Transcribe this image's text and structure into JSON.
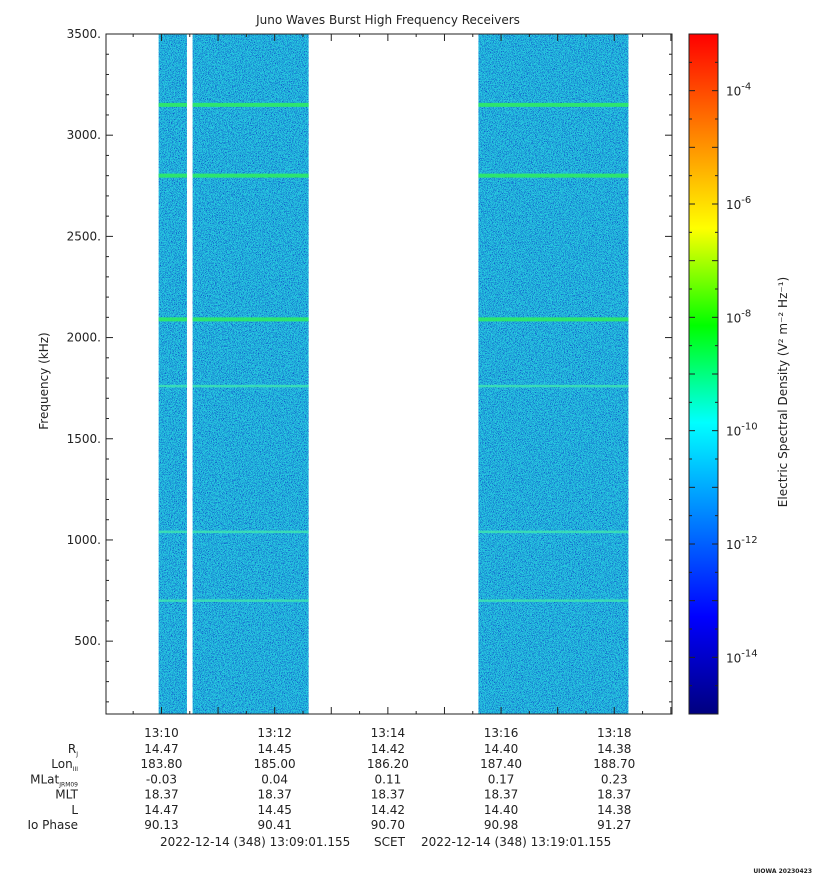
{
  "chart_data": {
    "type": "heatmap",
    "title": "Juno Waves Burst High Frequency Receivers",
    "ylabel": "Frequency (kHz)",
    "y_ticks": [
      "3500.",
      "3000.",
      "2500.",
      "2000.",
      "1500.",
      "1000.",
      "500."
    ],
    "y_tick_values": [
      3500,
      3000,
      2500,
      2000,
      1500,
      1000,
      500
    ],
    "ylim": [
      140,
      3500
    ],
    "x_ticks": [
      "13:10",
      "13:12",
      "13:14",
      "13:16",
      "13:18"
    ],
    "x_tick_minutes": [
      10,
      12,
      14,
      16,
      18
    ],
    "xlim_minutes": [
      9.02,
      19.02
    ],
    "data_segments_minutes": [
      [
        9.95,
        10.45
      ],
      [
        10.55,
        12.6
      ],
      [
        15.6,
        18.25
      ]
    ],
    "emission_lines_khz": [
      3150,
      2800,
      2090,
      1760,
      1040,
      700
    ],
    "colorbar": {
      "label": "Electric Spectral Density (V² m⁻² Hz⁻¹)",
      "ticks": [
        "10",
        "10",
        "10",
        "10",
        "10",
        "10"
      ],
      "tick_exponents": [
        "-4",
        "-6",
        "-8",
        "-10",
        "-12",
        "-14"
      ],
      "log_range": [
        -15,
        -3
      ],
      "colors": [
        "#00007f",
        "#0000ff",
        "#007fff",
        "#00ffff",
        "#00ff00",
        "#ffff00",
        "#ff7f00",
        "#ff0000"
      ]
    },
    "ephemeris": {
      "labels": [
        "R",
        "Lon",
        "MLat",
        "MLT",
        "L",
        "Io Phase"
      ],
      "label_subscripts": [
        "J",
        "III",
        "JRM09",
        "",
        "",
        ""
      ],
      "rows": [
        [
          "14.47",
          "14.45",
          "14.42",
          "14.40",
          "14.38"
        ],
        [
          "183.80",
          "185.00",
          "186.20",
          "187.40",
          "188.70"
        ],
        [
          "-0.03",
          "0.04",
          "0.11",
          "0.17",
          "0.23"
        ],
        [
          "18.37",
          "18.37",
          "18.37",
          "18.37",
          "18.37"
        ],
        [
          "14.47",
          "14.45",
          "14.42",
          "14.40",
          "14.38"
        ],
        [
          "90.13",
          "90.41",
          "90.70",
          "90.98",
          "91.27"
        ]
      ]
    },
    "time_range": {
      "start": "2022-12-14 (348) 13:09:01.155",
      "mid": "SCET",
      "end": "2022-12-14 (348) 13:19:01.155"
    },
    "version_tag": "UIOWA 20230423"
  }
}
